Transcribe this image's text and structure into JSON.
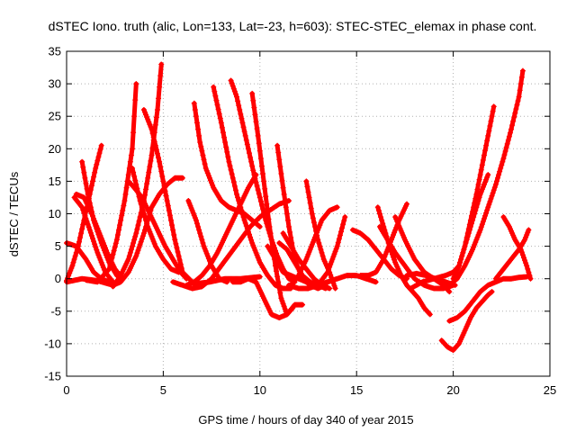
{
  "chart_data": {
    "type": "scatter",
    "title": "dSTEC Iono. truth (alic, Lon=133, Lat=-23, h=603): STEC-STEC_elemax in phase cont.",
    "xlabel": "GPS time / hours of day 340 of year 2015",
    "ylabel": "dSTEC  / TECUs",
    "xlim": [
      0,
      25
    ],
    "ylim": [
      -15,
      35
    ],
    "xticks": [
      0,
      5,
      10,
      15,
      20,
      25
    ],
    "yticks": [
      -15,
      -10,
      -5,
      0,
      5,
      10,
      15,
      20,
      25,
      30,
      35
    ],
    "grid": true,
    "marker": "plus",
    "color": "#ff0000",
    "series": [
      {
        "x": [
          0.0,
          0.3,
          0.6,
          0.9,
          1.2,
          1.5,
          1.8
        ],
        "y": [
          -0.3,
          2.0,
          5.0,
          9.0,
          13.0,
          17.0,
          20.5
        ]
      },
      {
        "x": [
          0.0,
          0.5,
          1.0,
          1.4,
          1.8,
          2.2
        ],
        "y": [
          5.5,
          5.0,
          3.0,
          1.0,
          0.0,
          -0.5
        ]
      },
      {
        "x": [
          0.4,
          0.8,
          1.2,
          1.6,
          2.0,
          2.4
        ],
        "y": [
          12.5,
          11.0,
          7.5,
          4.0,
          1.0,
          -0.5
        ]
      },
      {
        "x": [
          0.8,
          1.1,
          1.4,
          1.8,
          2.2,
          2.6
        ],
        "y": [
          18.0,
          13.0,
          9.0,
          5.5,
          2.5,
          0.5
        ]
      },
      {
        "x": [
          0.5,
          0.9,
          1.3,
          1.7,
          2.1,
          2.5,
          2.9
        ],
        "y": [
          13.0,
          12.5,
          10.0,
          7.0,
          4.0,
          1.5,
          0.0
        ]
      },
      {
        "x": [
          0.0,
          0.8,
          1.6,
          2.4,
          2.8,
          3.2,
          3.6,
          4.0,
          4.4,
          4.8,
          5.2,
          5.6,
          6.0
        ],
        "y": [
          -0.5,
          0.0,
          -0.3,
          -1.0,
          -0.5,
          1.0,
          3.5,
          7.0,
          11.0,
          13.0,
          14.5,
          15.5,
          15.5
        ]
      },
      {
        "x": [
          1.0,
          1.6,
          2.2,
          2.6,
          3.0,
          3.4,
          3.6
        ],
        "y": [
          -0.2,
          -0.5,
          1.5,
          6.0,
          12.0,
          20.0,
          30.0
        ]
      },
      {
        "x": [
          2.4,
          2.8,
          3.2,
          3.6,
          4.0,
          4.4,
          4.7,
          4.9
        ],
        "y": [
          -1.2,
          0.5,
          3.0,
          7.0,
          12.0,
          19.0,
          26.0,
          33.0
        ]
      },
      {
        "x": [
          3.4,
          3.8,
          4.2,
          4.6,
          5.0,
          5.4,
          5.8
        ],
        "y": [
          17.0,
          12.0,
          8.0,
          5.0,
          3.0,
          1.5,
          1.0
        ]
      },
      {
        "x": [
          3.2,
          3.5,
          3.9,
          4.3,
          4.7,
          5.1,
          5.5,
          5.9,
          6.2
        ],
        "y": [
          15.0,
          14.0,
          12.5,
          10.0,
          7.5,
          5.0,
          3.0,
          1.0,
          0.0
        ]
      },
      {
        "x": [
          4.0,
          4.4,
          4.8,
          5.2,
          5.6,
          6.0,
          6.6,
          7.4,
          8.2,
          9.0,
          10.0
        ],
        "y": [
          26.0,
          23.0,
          18.0,
          12.0,
          6.0,
          1.0,
          -0.8,
          -0.5,
          0.0,
          0.0,
          0.3
        ]
      },
      {
        "x": [
          6.6,
          6.9,
          7.2,
          7.6,
          8.0,
          8.4,
          8.8,
          9.2,
          9.6,
          10.0
        ],
        "y": [
          27.0,
          21.0,
          17.0,
          14.0,
          12.0,
          11.0,
          10.5,
          10.0,
          9.0,
          8.0
        ]
      },
      {
        "x": [
          6.3,
          6.7,
          7.1,
          7.5,
          7.9,
          8.3
        ],
        "y": [
          12.0,
          9.0,
          5.0,
          2.0,
          0.0,
          -0.5
        ]
      },
      {
        "x": [
          5.5,
          6.0,
          6.5,
          7.0,
          7.5,
          8.0,
          8.5,
          9.0,
          9.5,
          10.0,
          10.5,
          11.0,
          11.5
        ],
        "y": [
          -0.5,
          -1.0,
          -1.5,
          -1.2,
          0.0,
          2.0,
          4.0,
          6.0,
          8.0,
          9.5,
          10.5,
          11.5,
          12.0
        ]
      },
      {
        "x": [
          6.2,
          6.6,
          7.0,
          7.4,
          7.8,
          8.2,
          8.6,
          9.0,
          9.4,
          9.8
        ],
        "y": [
          -1.0,
          -0.5,
          0.5,
          2.0,
          4.0,
          6.5,
          9.0,
          11.5,
          14.0,
          16.0
        ]
      },
      {
        "x": [
          7.6,
          8.0,
          8.4,
          8.8,
          9.2,
          9.6,
          10.0,
          10.4,
          10.8,
          11.2,
          11.6
        ],
        "y": [
          29.5,
          24.0,
          18.0,
          13.0,
          9.0,
          5.5,
          2.5,
          0.5,
          -1.0,
          -1.5,
          -1.5
        ]
      },
      {
        "x": [
          8.5,
          8.8,
          9.1,
          9.4,
          9.7,
          10.0,
          10.3,
          10.6,
          10.9,
          11.2,
          11.5,
          11.8
        ],
        "y": [
          30.5,
          28.0,
          24.0,
          20.0,
          16.0,
          12.5,
          9.0,
          6.0,
          3.5,
          1.5,
          0.0,
          -0.5
        ]
      },
      {
        "x": [
          9.6,
          9.9,
          10.2,
          10.5,
          10.8,
          11.1,
          11.4,
          11.7
        ],
        "y": [
          28.5,
          22.0,
          15.0,
          8.0,
          2.0,
          -3.0,
          -5.5,
          -4.5
        ]
      },
      {
        "x": [
          8.6,
          9.0,
          9.4,
          9.8,
          10.2,
          10.6,
          11.0,
          11.4,
          11.8,
          12.2
        ],
        "y": [
          -0.5,
          -0.5,
          0.0,
          -0.5,
          -3.0,
          -5.5,
          -6.0,
          -5.5,
          -4.0,
          -4.0
        ]
      },
      {
        "x": [
          10.9,
          11.2,
          11.5,
          11.8,
          12.2,
          12.6,
          13.0,
          13.4
        ],
        "y": [
          20.5,
          14.0,
          8.0,
          3.0,
          0.0,
          -1.0,
          -1.5,
          -1.0
        ]
      },
      {
        "x": [
          10.4,
          10.8,
          11.2,
          11.6,
          12.0,
          12.4,
          12.8,
          13.2
        ],
        "y": [
          5.0,
          3.0,
          1.0,
          0.5,
          0.0,
          -0.5,
          -1.0,
          -1.2
        ]
      },
      {
        "x": [
          11.0,
          11.4,
          11.8,
          12.2,
          12.6,
          13.0,
          13.4
        ],
        "y": [
          5.5,
          4.5,
          2.5,
          0.5,
          -0.5,
          -1.0,
          -1.5
        ]
      },
      {
        "x": [
          11.2,
          11.6,
          12.0,
          12.4,
          12.8,
          13.2,
          13.6
        ],
        "y": [
          7.0,
          5.0,
          3.0,
          1.5,
          0.0,
          -1.0,
          -1.5
        ]
      },
      {
        "x": [
          12.4,
          12.7,
          13.0,
          13.3,
          13.6,
          13.9
        ],
        "y": [
          15.0,
          10.0,
          6.0,
          3.0,
          1.0,
          -1.5
        ]
      },
      {
        "x": [
          11.6,
          12.0,
          12.4,
          12.8,
          13.2,
          13.6,
          14.0
        ],
        "y": [
          -1.0,
          0.5,
          3.0,
          6.0,
          9.0,
          10.5,
          11.0
        ]
      },
      {
        "x": [
          11.5,
          12.0,
          12.5,
          13.0,
          13.5,
          14.0,
          14.4
        ],
        "y": [
          -1.0,
          -1.5,
          -1.5,
          -1.0,
          1.0,
          5.0,
          9.5
        ]
      },
      {
        "x": [
          13.0,
          13.5,
          14.0,
          14.5,
          15.0,
          15.5,
          16.0
        ],
        "y": [
          -1.0,
          -0.5,
          0.0,
          0.5,
          0.5,
          0.0,
          -0.5
        ]
      },
      {
        "x": [
          15.2,
          15.6,
          16.0,
          16.4,
          16.8,
          17.2,
          17.6
        ],
        "y": [
          0.5,
          0.5,
          1.0,
          3.0,
          6.0,
          9.0,
          11.5
        ]
      },
      {
        "x": [
          14.8,
          15.2,
          15.6,
          16.0,
          16.4,
          16.8,
          17.2,
          17.6
        ],
        "y": [
          7.5,
          7.0,
          6.0,
          4.5,
          3.0,
          1.5,
          0.5,
          0.0
        ]
      },
      {
        "x": [
          16.1,
          16.4,
          16.7,
          17.0,
          17.3,
          17.6,
          17.9,
          18.2,
          18.5,
          18.8
        ],
        "y": [
          11.0,
          8.0,
          5.0,
          2.5,
          0.5,
          -1.0,
          -2.0,
          -3.0,
          -4.5,
          -5.5
        ]
      },
      {
        "x": [
          16.2,
          16.6,
          17.0,
          17.5,
          18.0,
          18.5,
          19.0,
          19.5,
          20.0
        ],
        "y": [
          8.0,
          6.0,
          4.0,
          2.0,
          0.0,
          -1.0,
          -1.5,
          -1.5,
          -1.0
        ]
      },
      {
        "x": [
          17.0,
          17.5,
          18.0,
          18.5,
          19.0,
          19.5,
          19.8
        ],
        "y": [
          9.5,
          6.0,
          3.0,
          1.0,
          0.0,
          -1.0,
          -2.0
        ]
      },
      {
        "x": [
          17.6,
          18.1,
          18.6,
          19.1,
          19.6,
          20.1
        ],
        "y": [
          0.5,
          0.8,
          0.5,
          0.0,
          -0.5,
          -1.0
        ]
      },
      {
        "x": [
          19.4,
          19.7,
          20.0,
          20.3,
          20.6,
          20.9,
          21.2,
          21.5,
          21.8,
          22.0
        ],
        "y": [
          -9.5,
          -10.5,
          -11.0,
          -10.0,
          -8.0,
          -6.0,
          -4.5,
          -3.5,
          -2.5,
          -2.0
        ]
      },
      {
        "x": [
          19.8,
          20.2,
          20.6,
          21.0,
          21.4,
          21.8,
          22.2,
          22.6,
          23.0,
          23.4,
          23.8
        ],
        "y": [
          -6.5,
          -6.0,
          -5.0,
          -3.5,
          -2.0,
          -1.0,
          -0.5,
          0.0,
          0.0,
          0.2,
          0.3
        ]
      },
      {
        "x": [
          20.0,
          20.3,
          20.6,
          20.9,
          21.2,
          21.5,
          21.8,
          22.1
        ],
        "y": [
          0.0,
          2.0,
          5.0,
          9.0,
          13.0,
          17.5,
          22.0,
          26.5
        ]
      },
      {
        "x": [
          19.8,
          20.2,
          20.6,
          21.0,
          21.4,
          21.8,
          22.2,
          22.6,
          23.0,
          23.4,
          23.6
        ],
        "y": [
          -1.0,
          0.0,
          2.0,
          4.5,
          7.5,
          11.0,
          14.5,
          18.5,
          23.0,
          28.0,
          32.0
        ]
      },
      {
        "x": [
          17.8,
          18.4,
          19.0,
          19.6,
          20.0,
          20.3,
          20.6,
          21.0,
          21.4,
          21.8
        ],
        "y": [
          -1.5,
          -0.5,
          0.0,
          0.5,
          1.0,
          2.0,
          5.0,
          9.0,
          13.0,
          16.0
        ]
      },
      {
        "x": [
          22.6,
          22.9,
          23.2,
          23.5,
          23.8,
          24.0
        ],
        "y": [
          9.5,
          8.0,
          6.0,
          4.5,
          2.0,
          0.0
        ]
      },
      {
        "x": [
          22.2,
          22.6,
          23.0,
          23.4,
          23.7,
          23.9
        ],
        "y": [
          0.0,
          1.5,
          3.0,
          4.5,
          6.0,
          7.5
        ]
      }
    ]
  }
}
